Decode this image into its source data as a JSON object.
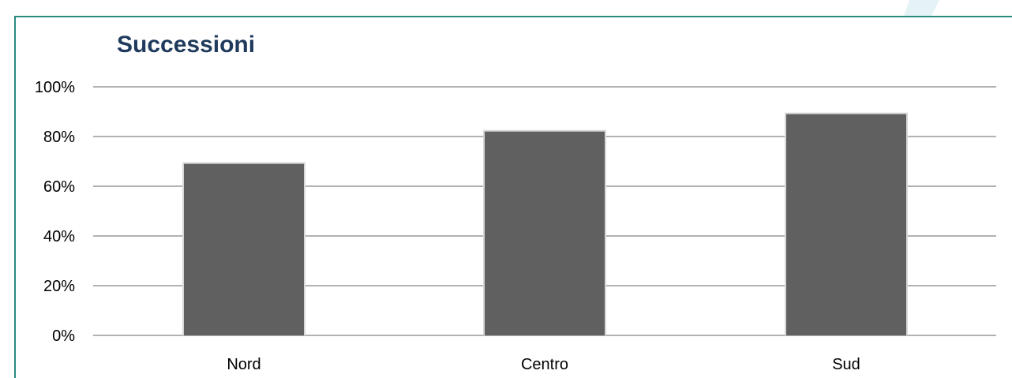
{
  "colors": {
    "border": "#2a8a80",
    "accent_shape": "#e6f3f6",
    "title": "#1f3a5c",
    "bar": "#606060",
    "gridline": "#858585"
  },
  "chart_data": {
    "type": "bar",
    "title": "Successioni",
    "xlabel": "",
    "ylabel": "",
    "categories": [
      "Nord",
      "Centro",
      "Sud"
    ],
    "values": [
      0.69,
      0.82,
      0.89
    ],
    "ylim": [
      0,
      1
    ],
    "yticks": [
      0,
      0.2,
      0.4,
      0.6,
      0.8,
      1.0
    ],
    "ytick_labels": [
      "0%",
      "20%",
      "40%",
      "60%",
      "80%",
      "100%"
    ],
    "grid": true,
    "legend": "none"
  }
}
